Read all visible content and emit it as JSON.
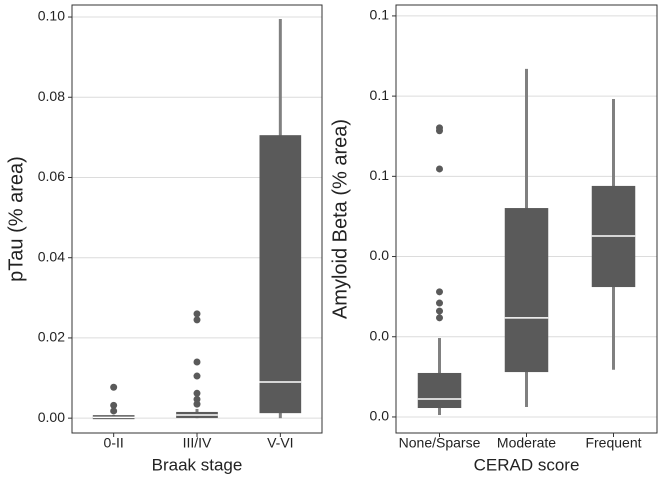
{
  "chart_data": [
    {
      "type": "box",
      "xlabel": "Braak stage",
      "ylabel": "pTau (% area)",
      "color": "#5a5a5a",
      "whisker_color": "#808080",
      "median_color": "#ffffff",
      "grid": true,
      "categories": [
        "0-II",
        "III/IV",
        "V-VI"
      ],
      "boxes": [
        {
          "min": 0,
          "q1": 0,
          "median": 0.0002,
          "q3": 0.0005,
          "max": 0.0008,
          "outliers": [
            0.0077,
            0.0032,
            0.0018
          ]
        },
        {
          "min": 0,
          "q1": 0.0003,
          "median": 0.0008,
          "q3": 0.0013,
          "max": 0.0023,
          "outliers": [
            0.026,
            0.0245,
            0.014,
            0.0105,
            0.0062,
            0.0047,
            0.0035
          ]
        },
        {
          "min": 0,
          "q1": 0.0015,
          "median": 0.009,
          "q3": 0.0703,
          "max": 0.0995,
          "outliers": []
        }
      ],
      "ylim": [
        -0.0037,
        0.103
      ],
      "yticks": [
        {
          "value": 0,
          "label": "0.00"
        },
        {
          "value": 0.02,
          "label": "0.02"
        },
        {
          "value": 0.04,
          "label": "0.04"
        },
        {
          "value": 0.06,
          "label": "0.06"
        },
        {
          "value": 0.08,
          "label": "0.08"
        },
        {
          "value": 0.1,
          "label": "0.10"
        }
      ]
    },
    {
      "type": "box",
      "xlabel": "CERAD score",
      "ylabel": "Amyloid Beta (% area)",
      "color": "#5a5a5a",
      "whisker_color": "#808080",
      "median_color": "#ffffff",
      "grid": true,
      "categories": [
        "None/Sparse",
        "Moderate",
        "Frequent"
      ],
      "boxes": [
        {
          "min": 0.0006,
          "q1": 0.0031,
          "median": 0.0056,
          "q3": 0.0134,
          "max": 0.0246,
          "outliers": [
            0.0901,
            0.0892,
            0.0773,
            0.039,
            0.0355,
            0.033,
            0.0309
          ]
        },
        {
          "min": 0.0031,
          "q1": 0.0143,
          "median": 0.0309,
          "q3": 0.0648,
          "max": 0.1085,
          "outliers": []
        },
        {
          "min": 0.0147,
          "q1": 0.0408,
          "median": 0.0564,
          "q3": 0.0717,
          "max": 0.0991,
          "outliers": []
        }
      ],
      "ylim": [
        -0.005,
        0.1284
      ],
      "yticks": [
        {
          "value": 0,
          "label": "0.0"
        },
        {
          "value": 0.025,
          "label": "0.0"
        },
        {
          "value": 0.05,
          "label": "0.0"
        },
        {
          "value": 0.075,
          "label": "0.1"
        },
        {
          "value": 0.1,
          "label": "0.1"
        },
        {
          "value": 0.125,
          "label": "0.1"
        }
      ]
    }
  ]
}
